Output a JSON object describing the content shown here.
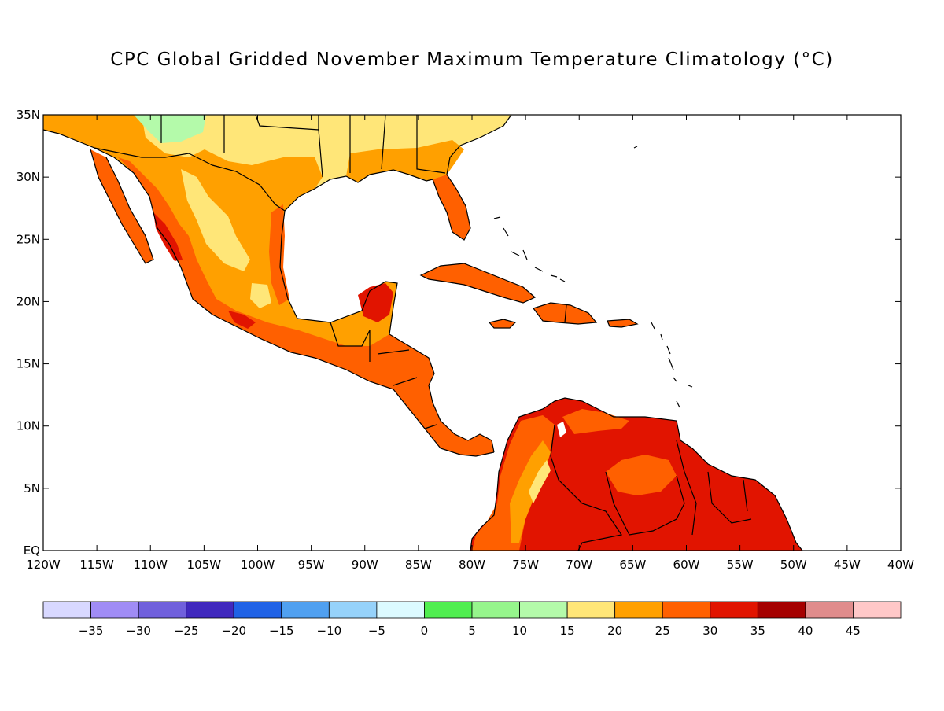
{
  "title": "CPC Global Gridded November Maximum Temperature Climatology (°C)",
  "map": {
    "lat_ticks": [
      "35N",
      "30N",
      "25N",
      "20N",
      "15N",
      "10N",
      "5N",
      "EQ"
    ],
    "lon_ticks": [
      "120W",
      "115W",
      "110W",
      "105W",
      "100W",
      "95W",
      "90W",
      "85W",
      "80W",
      "75W",
      "70W",
      "65W",
      "60W",
      "55W",
      "50W",
      "45W",
      "40W"
    ],
    "lat_range": [
      0,
      35
    ],
    "lon_range": [
      -120,
      -40
    ]
  },
  "colorbar": {
    "colors": [
      "#d8d8ff",
      "#a08cf5",
      "#7060dc",
      "#4028be",
      "#2062e6",
      "#50a0f0",
      "#96d2fa",
      "#dcfaff",
      "#50ee50",
      "#96f58c",
      "#b4faaa",
      "#ffe678",
      "#ffa000",
      "#ff6000",
      "#e11400",
      "#a50000",
      "#e08c8c",
      "#ffc8c8"
    ],
    "labels": [
      "-35",
      "-30",
      "-25",
      "-20",
      "-15",
      "-10",
      "-5",
      "0",
      "5",
      "10",
      "15",
      "20",
      "25",
      "30",
      "35",
      "40",
      "45"
    ]
  }
}
